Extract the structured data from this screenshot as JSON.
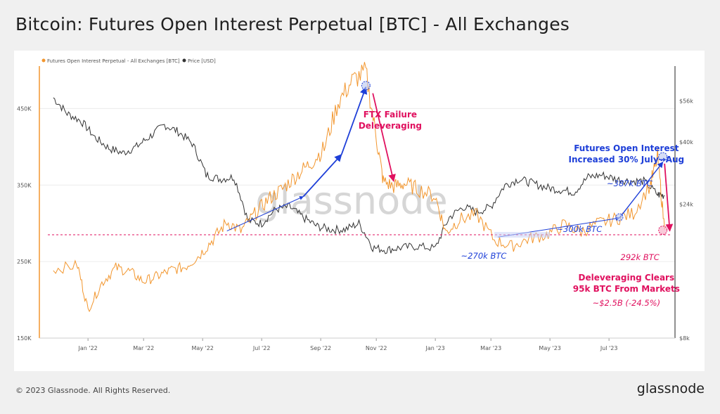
{
  "header": {
    "title": "Bitcoin: Futures Open Interest Perpetual [BTC] - All Exchanges"
  },
  "footer": {
    "copyright": "© 2023 Glassnode. All Rights Reserved.",
    "brand": "glassnode"
  },
  "watermark": "glassnode",
  "colors": {
    "oi": "#f2962e",
    "price": "#333333",
    "blue": "#1e3fd8",
    "red": "#e0115f"
  },
  "chart_data": {
    "type": "line",
    "title": "Bitcoin: Futures Open Interest Perpetual [BTC] - All Exchanges",
    "x_ticks": [
      "Jan '22",
      "Mar '22",
      "May '22",
      "Jul '22",
      "Sep '22",
      "Nov '22",
      "Jan '23",
      "Mar '23",
      "May '23",
      "Jul '23"
    ],
    "y_left": {
      "label": "",
      "ticks": [
        "450K",
        "350K",
        "250K",
        "150K"
      ],
      "ylim": [
        150000,
        500000
      ]
    },
    "y_right": {
      "label": "",
      "scale": "log",
      "ticks": [
        "$56k",
        "$40k",
        "$24k",
        "$8k"
      ]
    },
    "legend": {
      "position": "top-left",
      "entries": [
        "Futures Open Interest Perpetual - All Exchanges [BTC]",
        "Price [USD]"
      ]
    },
    "series": [
      {
        "name": "Futures Open Interest Perpetual - All Exchanges [BTC]",
        "axis": "left",
        "x": [
          2021.9,
          2021.97,
          2022.0,
          2022.04,
          2022.08,
          2022.12,
          2022.16,
          2022.2,
          2022.24,
          2022.28,
          2022.32,
          2022.36,
          2022.4,
          2022.44,
          2022.48,
          2022.52,
          2022.56,
          2022.6,
          2022.64,
          2022.68,
          2022.72,
          2022.76,
          2022.8,
          2022.83,
          2022.85,
          2022.88,
          2022.91,
          2022.95,
          2023.0,
          2023.03,
          2023.07,
          2023.12,
          2023.17,
          2023.22,
          2023.27,
          2023.32,
          2023.37,
          2023.42,
          2023.47,
          2023.52,
          2023.57,
          2023.62,
          2023.64,
          2023.66
        ],
        "values": [
          240000,
          245000,
          187000,
          222000,
          242000,
          237000,
          224000,
          231000,
          239000,
          243000,
          258000,
          279000,
          302000,
          290000,
          312000,
          332000,
          345000,
          363000,
          378000,
          398000,
          458000,
          486000,
          498000,
          412000,
          355000,
          348000,
          352000,
          345000,
          335000,
          288000,
          305000,
          311000,
          278000,
          270000,
          280000,
          285000,
          298000,
          289000,
          300000,
          306000,
          313000,
          352000,
          387000,
          292000
        ]
      },
      {
        "name": "Price [USD]",
        "axis": "right",
        "x": [
          2021.9,
          2021.94,
          2021.98,
          2022.02,
          2022.06,
          2022.1,
          2022.14,
          2022.18,
          2022.22,
          2022.26,
          2022.3,
          2022.34,
          2022.38,
          2022.42,
          2022.46,
          2022.5,
          2022.54,
          2022.58,
          2022.62,
          2022.66,
          2022.7,
          2022.74,
          2022.78,
          2022.82,
          2022.86,
          2022.9,
          2022.95,
          2023.0,
          2023.04,
          2023.08,
          2023.12,
          2023.16,
          2023.2,
          2023.24,
          2023.28,
          2023.32,
          2023.36,
          2023.4,
          2023.44,
          2023.48,
          2023.52,
          2023.56,
          2023.6,
          2023.64,
          2023.66
        ],
        "values": [
          57500,
          50500,
          47500,
          41500,
          38000,
          36500,
          38500,
          42000,
          46000,
          43500,
          39500,
          30500,
          29500,
          30000,
          21000,
          20500,
          23000,
          23500,
          21500,
          20000,
          19500,
          19500,
          20500,
          16800,
          16500,
          16800,
          17000,
          16700,
          21500,
          23500,
          22500,
          23500,
          28000,
          29500,
          28500,
          27500,
          27000,
          26500,
          30000,
          30500,
          29500,
          29000,
          29000,
          26000,
          25800
        ]
      }
    ],
    "reference_line": {
      "value": 285000,
      "axis": "left",
      "style": "dashed",
      "color": "#e0115f"
    },
    "annotations": [
      {
        "id": "ftx_title",
        "lines": [
          "FTX Failure",
          "Deleveraging"
        ],
        "color": "#e0115f",
        "bold": true
      },
      {
        "id": "fut_title",
        "lines": [
          "Futures Open Interest",
          "Increased 30% July→Aug"
        ],
        "color": "#1e3fd8",
        "bold": true
      },
      {
        "id": "dlv_title",
        "lines": [
          "Deleveraging Clears",
          "95k BTC From Markets"
        ],
        "color": "#e0115f",
        "bold": true
      },
      {
        "id": "dlv_sub",
        "lines": [
          "~$2.5B (-24.5%)"
        ],
        "color": "#e0115f",
        "bold": false
      },
      {
        "id": "l387",
        "lines": [
          "~387k BTC"
        ],
        "color": "#1e3fd8",
        "bold": false
      },
      {
        "id": "l300",
        "lines": [
          "~300k BTC"
        ],
        "color": "#1e3fd8",
        "bold": false
      },
      {
        "id": "l270",
        "lines": [
          "~270k BTC"
        ],
        "color": "#1e3fd8",
        "bold": false
      },
      {
        "id": "l292",
        "lines": [
          "292k BTC"
        ],
        "color": "#e0115f",
        "bold": false
      }
    ]
  }
}
